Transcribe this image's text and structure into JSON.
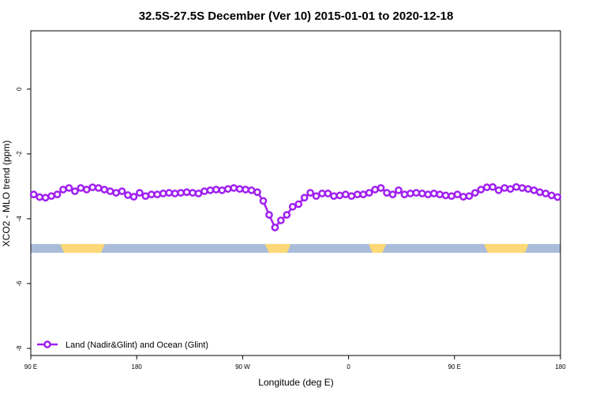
{
  "chart_data": {
    "type": "line",
    "title": "32.5S-27.5S December (Ver 10)   2015-01-01 to 2020-12-18",
    "x_label": "Longitude (deg E)",
    "y_label": "XCO2 - MLO trend (ppm)",
    "xlim": [
      90,
      540
    ],
    "ylim": [
      -8.22,
      1.8
    ],
    "xticks": [
      {
        "value": 90,
        "label": "90 E"
      },
      {
        "value": 180,
        "label": "180"
      },
      {
        "value": 270,
        "label": "90 W"
      },
      {
        "value": 360,
        "label": "0"
      },
      {
        "value": 450,
        "label": "90 E"
      },
      {
        "value": 540,
        "label": "180"
      }
    ],
    "yticks": [
      -8,
      -6,
      -4,
      -2,
      0
    ],
    "legend_position": "bottom-left",
    "surface_band": {
      "ylim": [
        -5.05,
        -4.78
      ],
      "ocean_color": "#a9bcd9",
      "land_color": "#fcd877",
      "land": [
        [
          115,
          153
        ],
        [
          289,
          311
        ],
        [
          377,
          392
        ],
        [
          475,
          513
        ]
      ]
    },
    "x": [
      92.5,
      97.5,
      102.5,
      107.5,
      112.5,
      117.5,
      122.5,
      127.5,
      132.5,
      137.5,
      142.5,
      147.5,
      152.5,
      157.5,
      162.5,
      167.5,
      172.5,
      177.5,
      182.5,
      187.5,
      192.5,
      197.5,
      202.5,
      207.5,
      212.5,
      217.5,
      222.5,
      227.5,
      232.5,
      237.5,
      242.5,
      247.5,
      252.5,
      257.5,
      262.5,
      267.5,
      272.5,
      277.5,
      282.5,
      287.5,
      292.5,
      297.5,
      302.5,
      307.5,
      312.5,
      317.5,
      322.5,
      327.5,
      332.5,
      337.5,
      342.5,
      347.5,
      352.5,
      357.5,
      362.5,
      367.5,
      372.5,
      377.5,
      382.5,
      387.5,
      392.5,
      397.5,
      402.5,
      407.5,
      412.5,
      417.5,
      422.5,
      427.5,
      432.5,
      437.5,
      442.5,
      447.5,
      452.5,
      457.5,
      462.5,
      467.5,
      472.5,
      477.5,
      482.5,
      487.5,
      492.5,
      497.5,
      502.5,
      507.5,
      512.5,
      517.5,
      522.5,
      527.5,
      532.5,
      537.5
    ],
    "series": [
      {
        "name": "Land (Nadir&Glint) and Ocean (Glint)",
        "color": "#a020f0",
        "values": [
          -3.25,
          -3.33,
          -3.35,
          -3.3,
          -3.25,
          -3.1,
          -3.05,
          -3.15,
          -3.05,
          -3.1,
          -3.03,
          -3.05,
          -3.1,
          -3.15,
          -3.2,
          -3.15,
          -3.27,
          -3.32,
          -3.2,
          -3.3,
          -3.25,
          -3.25,
          -3.22,
          -3.2,
          -3.22,
          -3.2,
          -3.18,
          -3.2,
          -3.22,
          -3.15,
          -3.12,
          -3.1,
          -3.12,
          -3.08,
          -3.05,
          -3.08,
          -3.1,
          -3.12,
          -3.18,
          -3.45,
          -3.88,
          -4.27,
          -4.05,
          -3.88,
          -3.63,
          -3.55,
          -3.35,
          -3.2,
          -3.3,
          -3.22,
          -3.22,
          -3.3,
          -3.28,
          -3.25,
          -3.3,
          -3.25,
          -3.25,
          -3.2,
          -3.1,
          -3.05,
          -3.2,
          -3.25,
          -3.12,
          -3.25,
          -3.22,
          -3.2,
          -3.22,
          -3.25,
          -3.22,
          -3.25,
          -3.28,
          -3.3,
          -3.25,
          -3.32,
          -3.3,
          -3.2,
          -3.1,
          -3.03,
          -3.02,
          -3.12,
          -3.05,
          -3.08,
          -3.02,
          -3.05,
          -3.08,
          -3.12,
          -3.18,
          -3.22,
          -3.28,
          -3.33
        ]
      }
    ]
  }
}
